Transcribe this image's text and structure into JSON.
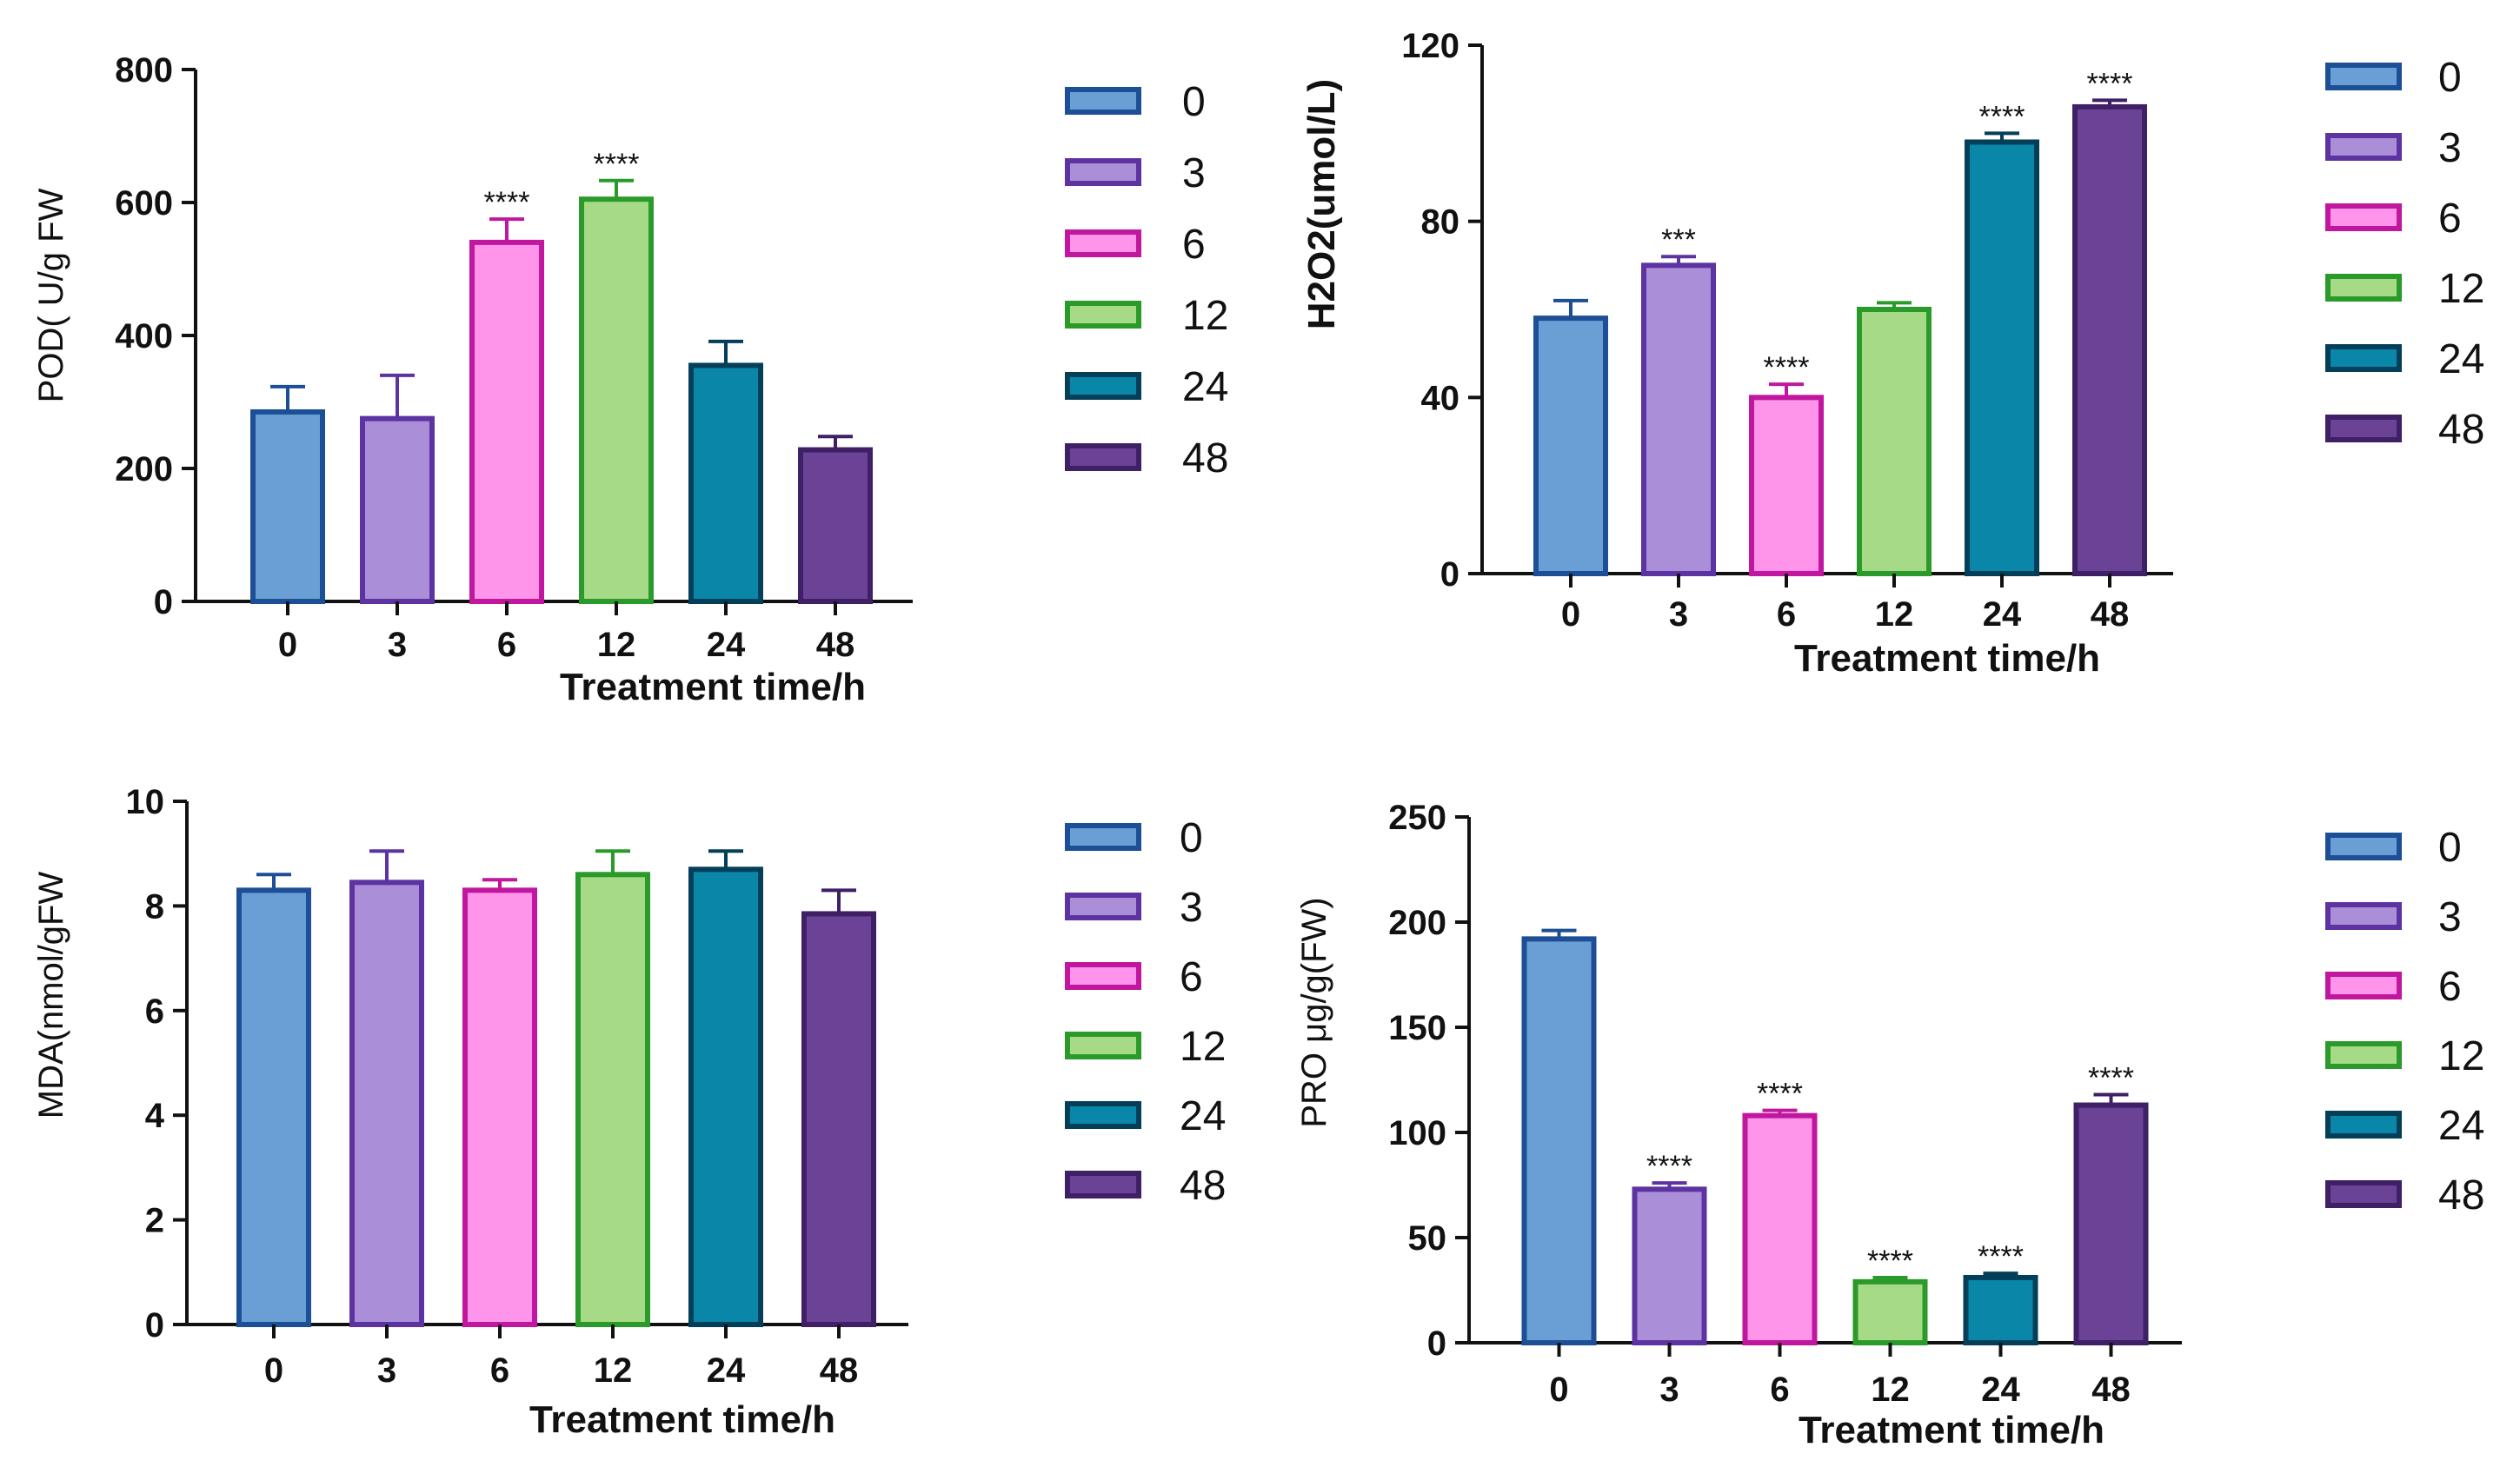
{
  "palette": {
    "0": {
      "fill": "#6a9fd6",
      "stroke": "#1c4f95"
    },
    "3": {
      "fill": "#ab8ed8",
      "stroke": "#5d33a1"
    },
    "6": {
      "fill": "#fe95ea",
      "stroke": "#c0179e"
    },
    "12": {
      "fill": "#a7da86",
      "stroke": "#2a9a2a"
    },
    "24": {
      "fill": "#0a87a8",
      "stroke": "#043f5a"
    },
    "48": {
      "fill": "#6a4396",
      "stroke": "#3f1f66"
    }
  },
  "chart_data": [
    {
      "id": "pod",
      "type": "bar",
      "title": "",
      "xlabel": "Treatment time/h",
      "ylabel": "POD( U/g FW",
      "categories": [
        "0",
        "3",
        "6",
        "12",
        "24",
        "48"
      ],
      "values": [
        285,
        275,
        540,
        605,
        355,
        228
      ],
      "errors": [
        38,
        65,
        35,
        28,
        36,
        20
      ],
      "significance": [
        "",
        "",
        "****",
        "****",
        "",
        ""
      ],
      "ylim": [
        0,
        800
      ],
      "yticks": [
        0,
        200,
        400,
        600,
        800
      ],
      "legend": [
        "0",
        "3",
        "6",
        "12",
        "24",
        "48"
      ],
      "legend_position": "right"
    },
    {
      "id": "h2o2",
      "type": "bar",
      "title": "",
      "xlabel": "Treatment time/h",
      "ylabel": "H2O2(umol/L)",
      "categories": [
        "0",
        "3",
        "6",
        "12",
        "24",
        "48"
      ],
      "values": [
        58,
        70,
        40,
        60,
        98,
        106
      ],
      "errors": [
        4,
        2,
        3,
        1.5,
        2,
        1.5
      ],
      "significance": [
        "",
        "***",
        "****",
        "",
        "****",
        "****"
      ],
      "ylim": [
        0,
        120
      ],
      "yticks": [
        0,
        40,
        80,
        120
      ],
      "legend": [
        "0",
        "3",
        "6",
        "12",
        "24",
        "48"
      ],
      "legend_position": "right"
    },
    {
      "id": "mda",
      "type": "bar",
      "title": "",
      "xlabel": "Treatment time/h",
      "ylabel": "MDA(nmol/gFW",
      "categories": [
        "0",
        "3",
        "6",
        "12",
        "24",
        "48"
      ],
      "values": [
        8.3,
        8.45,
        8.3,
        8.6,
        8.7,
        7.85
      ],
      "errors": [
        0.3,
        0.6,
        0.2,
        0.45,
        0.35,
        0.45
      ],
      "significance": [
        "",
        "",
        "",
        "",
        "",
        ""
      ],
      "ylim": [
        0,
        10
      ],
      "yticks": [
        0,
        2,
        4,
        6,
        8,
        10
      ],
      "legend": [
        "0",
        "3",
        "6",
        "12",
        "24",
        "48"
      ],
      "legend_position": "right"
    },
    {
      "id": "pro",
      "type": "bar",
      "title": "",
      "xlabel": "Treatment time/h",
      "ylabel": "PRO μg/g(FW)",
      "categories": [
        "0",
        "3",
        "6",
        "12",
        "24",
        "48"
      ],
      "values": [
        192,
        73,
        108,
        29,
        31,
        113
      ],
      "errors": [
        4,
        3,
        2.5,
        2,
        2,
        5
      ],
      "significance": [
        "",
        "****",
        "****",
        "****",
        "****",
        "****"
      ],
      "ylim": [
        0,
        250
      ],
      "yticks": [
        0,
        50,
        100,
        150,
        200,
        250
      ],
      "legend": [
        "0",
        "3",
        "6",
        "12",
        "24",
        "48"
      ],
      "legend_position": "right"
    }
  ]
}
